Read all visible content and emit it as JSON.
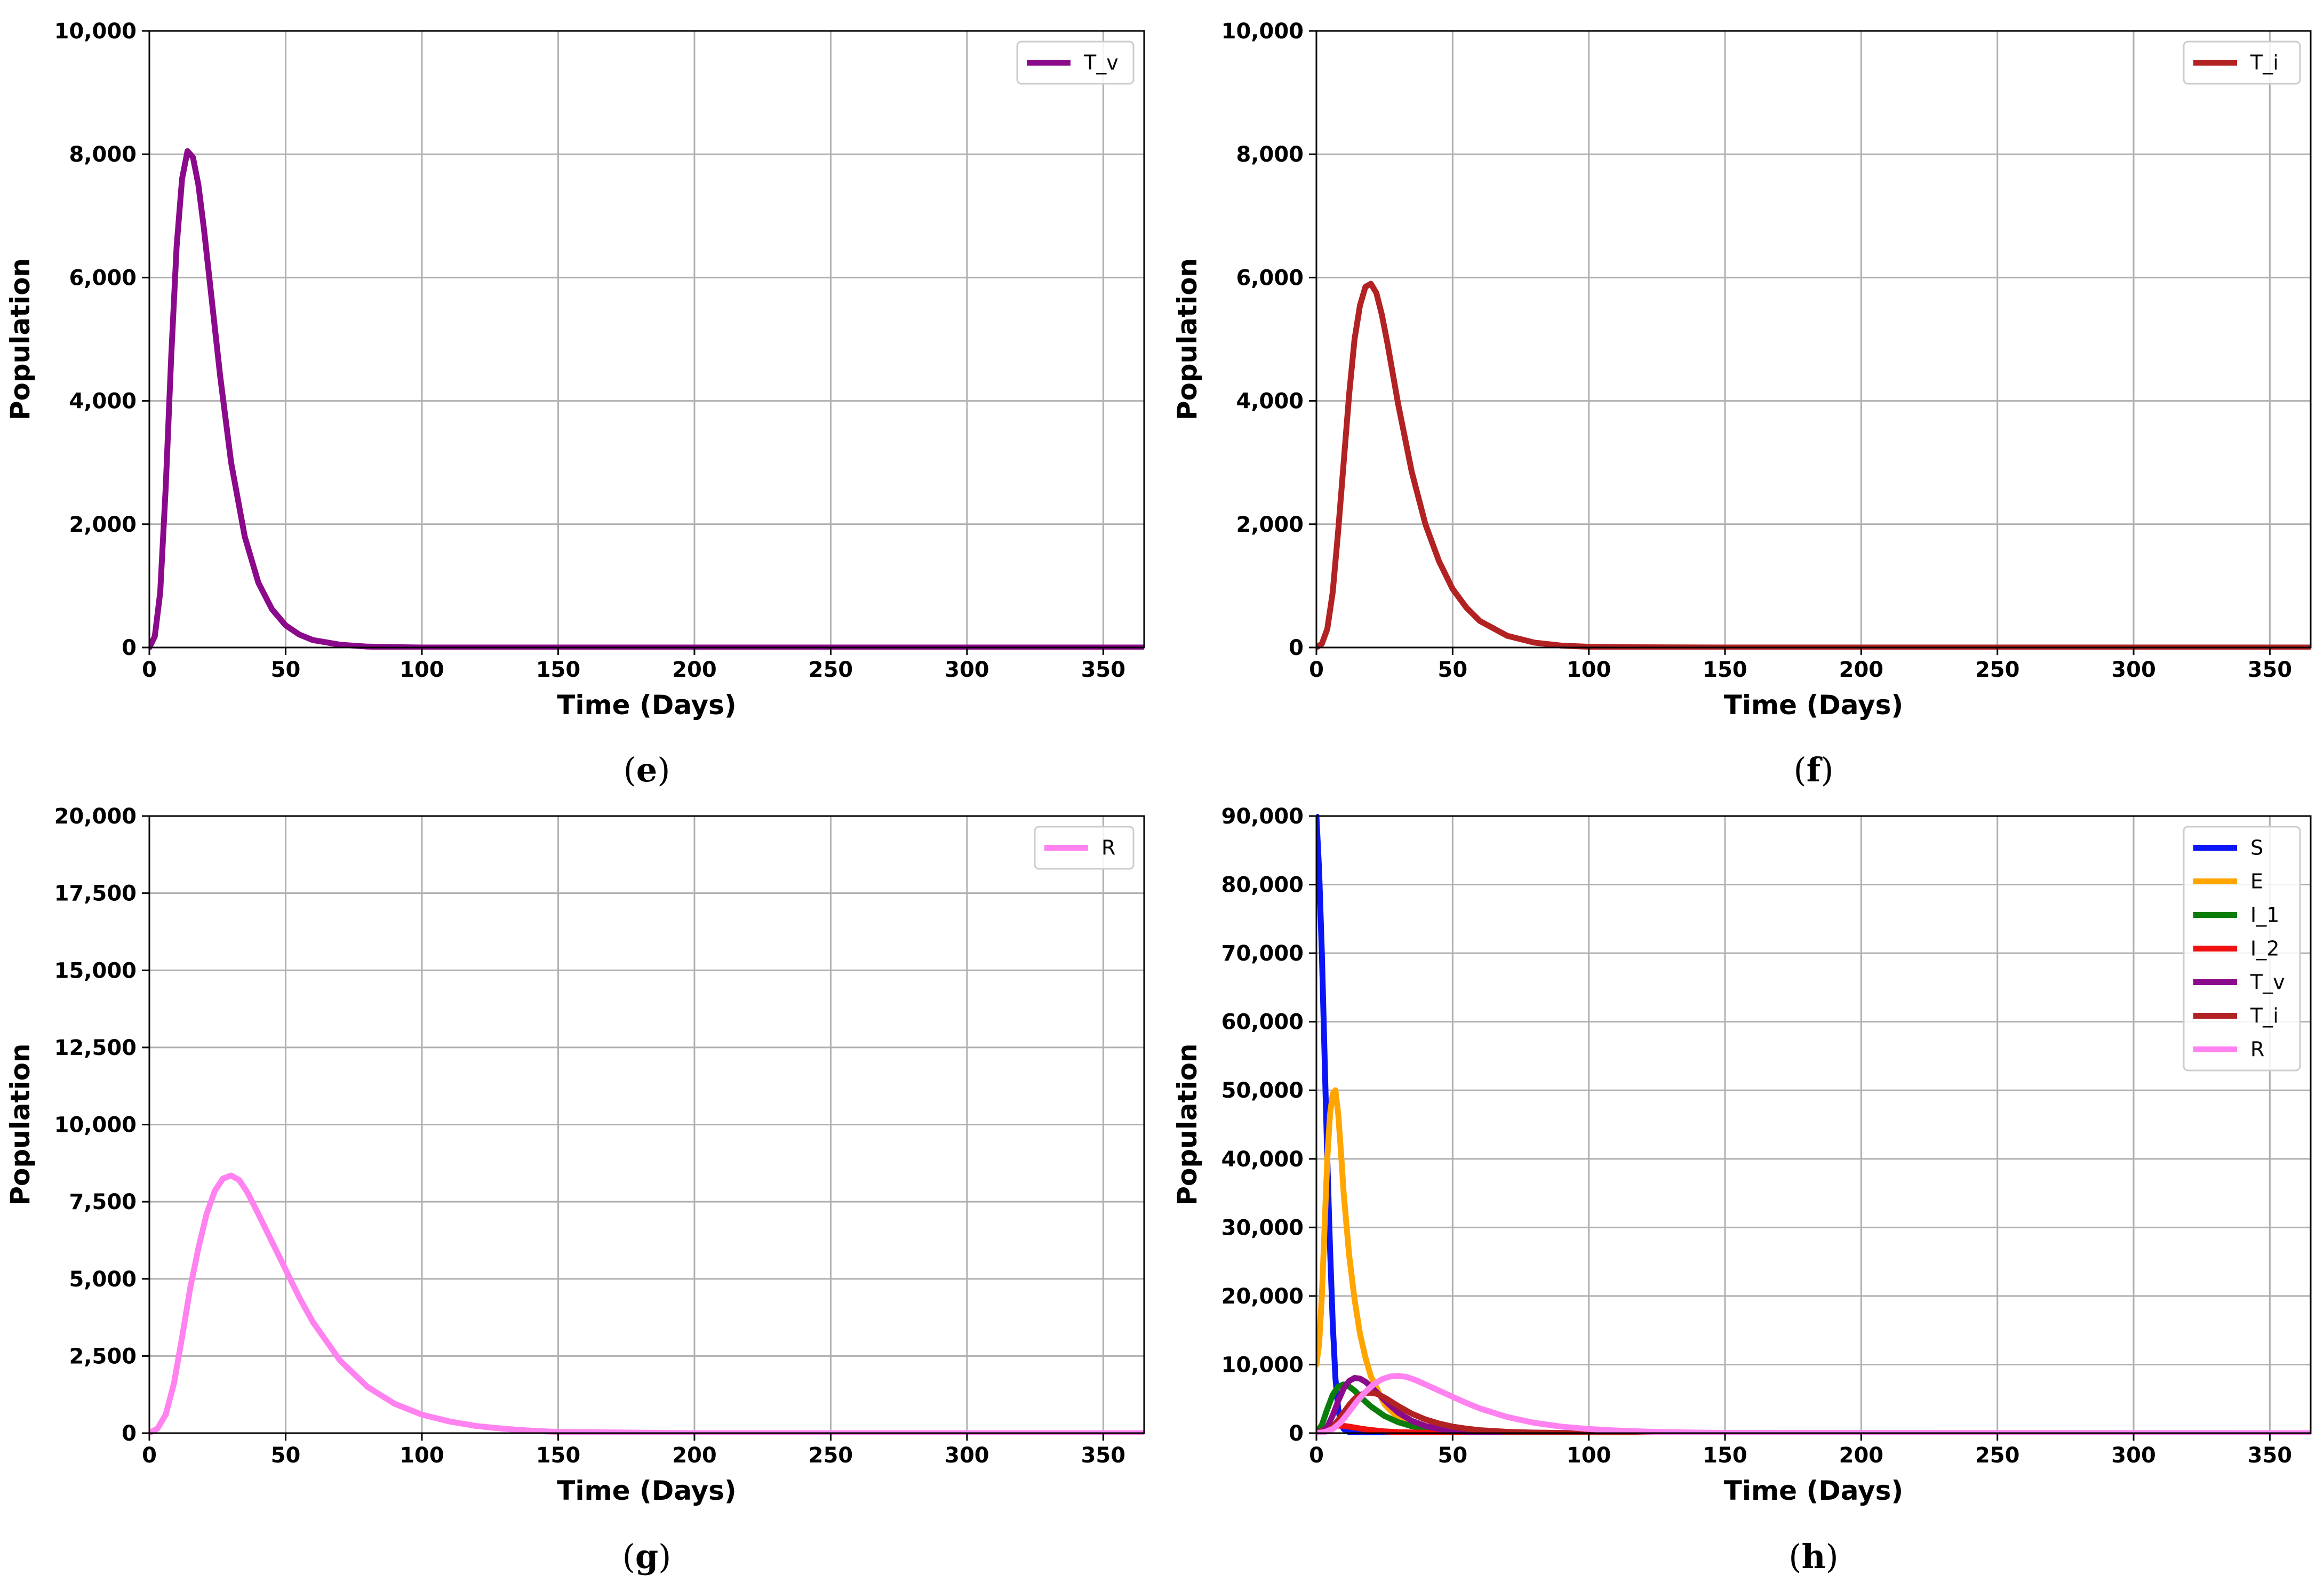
{
  "chart_data": [
    {
      "id": "e",
      "panel_label": "e",
      "type": "line",
      "xlabel": "Time (Days)",
      "ylabel": "Population",
      "xlim": [
        0,
        365
      ],
      "ylim": [
        0,
        10000
      ],
      "xticks": [
        0,
        50,
        100,
        150,
        200,
        250,
        300,
        350
      ],
      "xtick_labels": [
        "0",
        "50",
        "100",
        "150",
        "200",
        "250",
        "300",
        "350"
      ],
      "yticks": [
        0,
        2000,
        4000,
        6000,
        8000,
        10000
      ],
      "ytick_labels": [
        "0",
        "2,000",
        "4,000",
        "6,000",
        "8,000",
        "10,000"
      ],
      "grid": true,
      "legend_position": "top-right",
      "series": [
        {
          "name": "T_v",
          "color": "#8B0A8B",
          "x": [
            0,
            2,
            4,
            6,
            8,
            10,
            12,
            14,
            16,
            18,
            20,
            23,
            26,
            30,
            35,
            40,
            45,
            50,
            55,
            60,
            70,
            80,
            90,
            100,
            150,
            200,
            250,
            300,
            365
          ],
          "y": [
            0,
            180,
            900,
            2600,
            4700,
            6500,
            7600,
            8050,
            7950,
            7500,
            6800,
            5600,
            4400,
            3000,
            1800,
            1050,
            620,
            360,
            210,
            120,
            45,
            15,
            5,
            0,
            0,
            0,
            0,
            0,
            0
          ]
        }
      ]
    },
    {
      "id": "f",
      "panel_label": "f",
      "type": "line",
      "xlabel": "Time (Days)",
      "ylabel": "Population",
      "xlim": [
        0,
        365
      ],
      "ylim": [
        0,
        10000
      ],
      "xticks": [
        0,
        50,
        100,
        150,
        200,
        250,
        300,
        350
      ],
      "xtick_labels": [
        "0",
        "50",
        "100",
        "150",
        "200",
        "250",
        "300",
        "350"
      ],
      "yticks": [
        0,
        2000,
        4000,
        6000,
        8000,
        10000
      ],
      "ytick_labels": [
        "0",
        "2,000",
        "4,000",
        "6,000",
        "8,000",
        "10,000"
      ],
      "grid": true,
      "legend_position": "top-right",
      "series": [
        {
          "name": "T_i",
          "color": "#B22222",
          "x": [
            0,
            2,
            4,
            6,
            8,
            10,
            12,
            14,
            16,
            18,
            20,
            22,
            24,
            26,
            28,
            30,
            35,
            40,
            45,
            50,
            55,
            60,
            70,
            80,
            90,
            100,
            110,
            150,
            200,
            250,
            300,
            365
          ],
          "y": [
            0,
            60,
            300,
            900,
            1900,
            3000,
            4100,
            5000,
            5550,
            5850,
            5900,
            5750,
            5400,
            4950,
            4450,
            3950,
            2850,
            2000,
            1400,
            950,
            650,
            430,
            190,
            80,
            30,
            12,
            4,
            0,
            0,
            0,
            0,
            0
          ]
        }
      ]
    },
    {
      "id": "g",
      "panel_label": "g",
      "type": "line",
      "xlabel": "Time (Days)",
      "ylabel": "Population",
      "xlim": [
        0,
        365
      ],
      "ylim": [
        0,
        20000
      ],
      "xticks": [
        0,
        50,
        100,
        150,
        200,
        250,
        300,
        350
      ],
      "xtick_labels": [
        "0",
        "50",
        "100",
        "150",
        "200",
        "250",
        "300",
        "350"
      ],
      "yticks": [
        0,
        2500,
        5000,
        7500,
        10000,
        12500,
        15000,
        17500,
        20000
      ],
      "ytick_labels": [
        "0",
        "2,500",
        "5,000",
        "7,500",
        "10,000",
        "12,500",
        "15,000",
        "17,500",
        "20,000"
      ],
      "grid": true,
      "legend_position": "top-right",
      "series": [
        {
          "name": "R",
          "color": "#FF82F0",
          "x": [
            0,
            3,
            6,
            9,
            12,
            15,
            18,
            21,
            24,
            27,
            30,
            33,
            36,
            40,
            45,
            50,
            55,
            60,
            70,
            80,
            90,
            100,
            110,
            120,
            130,
            140,
            150,
            200,
            250,
            300,
            365
          ],
          "y": [
            0,
            150,
            600,
            1600,
            3100,
            4700,
            6000,
            7100,
            7850,
            8250,
            8350,
            8200,
            7800,
            7100,
            6200,
            5300,
            4400,
            3600,
            2350,
            1500,
            950,
            600,
            380,
            230,
            140,
            80,
            40,
            0,
            0,
            0,
            0
          ]
        }
      ]
    },
    {
      "id": "h",
      "panel_label": "h",
      "type": "line",
      "xlabel": "Time (Days)",
      "ylabel": "Population",
      "xlim": [
        0,
        365
      ],
      "ylim": [
        0,
        90000
      ],
      "xticks": [
        0,
        50,
        100,
        150,
        200,
        250,
        300,
        350
      ],
      "xtick_labels": [
        "0",
        "50",
        "100",
        "150",
        "200",
        "250",
        "300",
        "350"
      ],
      "yticks": [
        0,
        10000,
        20000,
        30000,
        40000,
        50000,
        60000,
        70000,
        80000,
        90000
      ],
      "ytick_labels": [
        "0",
        "10,000",
        "20,000",
        "30,000",
        "40,000",
        "50,000",
        "60,000",
        "70,000",
        "80,000",
        "90,000"
      ],
      "grid": true,
      "legend_position": "top-right",
      "series": [
        {
          "name": "S",
          "color": "#0A16F5",
          "x": [
            0,
            1,
            2,
            3,
            4,
            5,
            6,
            7,
            8,
            9,
            10,
            12,
            15,
            20,
            30,
            365
          ],
          "y": [
            90000,
            82000,
            70000,
            55000,
            40000,
            27000,
            16000,
            8000,
            3500,
            1500,
            600,
            150,
            30,
            0,
            0,
            0
          ]
        },
        {
          "name": "E",
          "color": "#FFA500",
          "x": [
            0,
            1,
            2,
            3,
            4,
            5,
            6,
            7,
            8,
            9,
            10,
            12,
            14,
            16,
            18,
            20,
            25,
            30,
            35,
            40,
            50,
            60,
            70,
            80,
            100,
            365
          ],
          "y": [
            10000,
            13000,
            20000,
            30000,
            40000,
            46500,
            49500,
            50000,
            46500,
            41000,
            35000,
            26000,
            19500,
            14500,
            11000,
            8300,
            4200,
            2200,
            1200,
            650,
            200,
            60,
            20,
            0,
            0,
            0
          ]
        },
        {
          "name": "I_1",
          "color": "#0B7D0B",
          "x": [
            0,
            2,
            4,
            6,
            8,
            10,
            12,
            14,
            16,
            18,
            20,
            25,
            30,
            35,
            40,
            50,
            60,
            70,
            365
          ],
          "y": [
            0,
            1200,
            3500,
            5600,
            6800,
            7100,
            6800,
            6200,
            5400,
            4600,
            3900,
            2500,
            1600,
            1000,
            600,
            220,
            80,
            25,
            0
          ]
        },
        {
          "name": "I_2",
          "color": "#F01010",
          "x": [
            0,
            2,
            4,
            6,
            8,
            10,
            12,
            14,
            16,
            18,
            20,
            25,
            30,
            40,
            50,
            60,
            365
          ],
          "y": [
            0,
            300,
            700,
            1000,
            1100,
            1050,
            950,
            820,
            680,
            560,
            450,
            260,
            150,
            50,
            15,
            0,
            0
          ]
        },
        {
          "name": "T_v",
          "color": "#8B0A8B",
          "x": [
            0,
            2,
            4,
            6,
            8,
            10,
            12,
            14,
            16,
            18,
            20,
            23,
            26,
            30,
            35,
            40,
            45,
            50,
            55,
            60,
            70,
            80,
            90,
            100,
            365
          ],
          "y": [
            0,
            180,
            900,
            2600,
            4700,
            6500,
            7600,
            8050,
            7950,
            7500,
            6800,
            5600,
            4400,
            3000,
            1800,
            1050,
            620,
            360,
            210,
            120,
            45,
            15,
            5,
            0,
            0
          ]
        },
        {
          "name": "T_i",
          "color": "#B22222",
          "x": [
            0,
            2,
            4,
            6,
            8,
            10,
            12,
            14,
            16,
            18,
            20,
            22,
            24,
            26,
            28,
            30,
            35,
            40,
            45,
            50,
            55,
            60,
            70,
            80,
            90,
            100,
            110,
            365
          ],
          "y": [
            0,
            60,
            300,
            900,
            1900,
            3000,
            4100,
            5000,
            5550,
            5850,
            5900,
            5750,
            5400,
            4950,
            4450,
            3950,
            2850,
            2000,
            1400,
            950,
            650,
            430,
            190,
            80,
            30,
            12,
            4,
            0
          ]
        },
        {
          "name": "R",
          "color": "#FF82F0",
          "x": [
            0,
            3,
            6,
            9,
            12,
            15,
            18,
            21,
            24,
            27,
            30,
            33,
            36,
            40,
            45,
            50,
            55,
            60,
            70,
            80,
            90,
            100,
            110,
            120,
            130,
            140,
            150,
            365
          ],
          "y": [
            0,
            150,
            600,
            1600,
            3100,
            4700,
            6000,
            7100,
            7850,
            8250,
            8350,
            8200,
            7800,
            7100,
            6200,
            5300,
            4400,
            3600,
            2350,
            1500,
            950,
            600,
            380,
            230,
            140,
            80,
            40,
            0
          ]
        }
      ]
    }
  ]
}
